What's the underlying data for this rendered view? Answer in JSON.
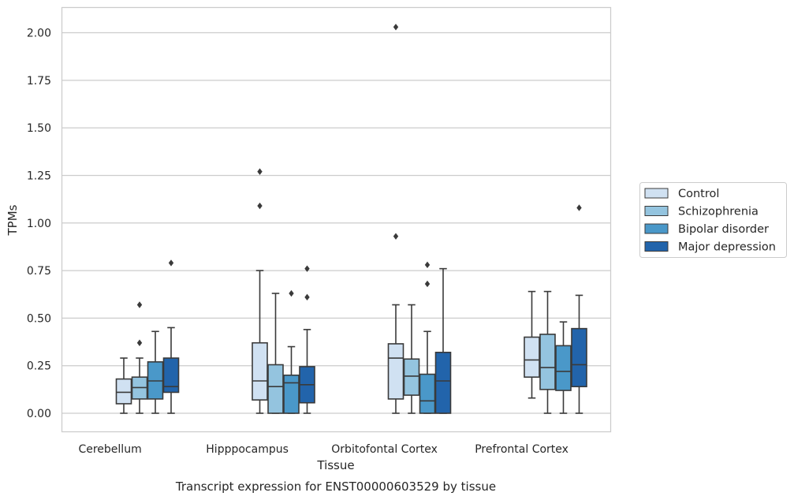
{
  "chart_data": {
    "type": "box",
    "caption": "Transcript expression for ENST00000603529 by tissue",
    "xlabel": "Tissue",
    "ylabel": "TPMs",
    "ylim": [
      -0.1,
      2.13
    ],
    "yticks": [
      "0.00",
      "0.25",
      "0.50",
      "0.75",
      "1.00",
      "1.25",
      "1.50",
      "1.75",
      "2.00"
    ],
    "ytick_values": [
      0,
      0.25,
      0.5,
      0.75,
      1.0,
      1.25,
      1.5,
      1.75,
      2.0
    ],
    "grid": "horizontal",
    "legend_placement": "right",
    "categories": [
      "Cerebellum",
      "Hipppocampus",
      "Orbitofontal Cortex",
      "Prefrontal Cortex"
    ],
    "series": [
      {
        "name": "Control",
        "color": "#d0e1f2",
        "boxes": [
          {
            "whislo": 0.0,
            "q1": 0.05,
            "med": 0.11,
            "q3": 0.18,
            "whishi": 0.29,
            "fliers": []
          },
          {
            "whislo": 0.0,
            "q1": 0.07,
            "med": 0.17,
            "q3": 0.37,
            "whishi": 0.75,
            "fliers": [
              1.09,
              1.27
            ]
          },
          {
            "whislo": 0.0,
            "q1": 0.075,
            "med": 0.29,
            "q3": 0.365,
            "whishi": 0.57,
            "fliers": [
              0.93,
              2.03
            ]
          },
          {
            "whislo": 0.08,
            "q1": 0.19,
            "med": 0.28,
            "q3": 0.4,
            "whishi": 0.64,
            "fliers": []
          }
        ]
      },
      {
        "name": "Schizophrenia",
        "color": "#94c4df",
        "boxes": [
          {
            "whislo": 0.0,
            "q1": 0.075,
            "med": 0.135,
            "q3": 0.19,
            "whishi": 0.29,
            "fliers": [
              0.37,
              0.57
            ]
          },
          {
            "whislo": 0.0,
            "q1": 0.0,
            "med": 0.14,
            "q3": 0.255,
            "whishi": 0.63,
            "fliers": []
          },
          {
            "whislo": 0.0,
            "q1": 0.095,
            "med": 0.195,
            "q3": 0.285,
            "whishi": 0.57,
            "fliers": []
          },
          {
            "whislo": 0.0,
            "q1": 0.125,
            "med": 0.24,
            "q3": 0.415,
            "whishi": 0.64,
            "fliers": []
          }
        ]
      },
      {
        "name": "Bipolar disorder",
        "color": "#4a98c9",
        "boxes": [
          {
            "whislo": 0.0,
            "q1": 0.075,
            "med": 0.17,
            "q3": 0.27,
            "whishi": 0.43,
            "fliers": []
          },
          {
            "whislo": 0.0,
            "q1": 0.0,
            "med": 0.16,
            "q3": 0.2,
            "whishi": 0.35,
            "fliers": [
              0.63
            ]
          },
          {
            "whislo": 0.0,
            "q1": 0.0,
            "med": 0.065,
            "q3": 0.205,
            "whishi": 0.43,
            "fliers": [
              0.68,
              0.78
            ]
          },
          {
            "whislo": 0.0,
            "q1": 0.12,
            "med": 0.22,
            "q3": 0.355,
            "whishi": 0.48,
            "fliers": []
          }
        ]
      },
      {
        "name": "Major depression",
        "color": "#2264ab",
        "boxes": [
          {
            "whislo": 0.0,
            "q1": 0.11,
            "med": 0.14,
            "q3": 0.29,
            "whishi": 0.45,
            "fliers": [
              0.79
            ]
          },
          {
            "whislo": 0.0,
            "q1": 0.055,
            "med": 0.15,
            "q3": 0.245,
            "whishi": 0.44,
            "fliers": [
              0.61,
              0.76
            ]
          },
          {
            "whislo": 0.0,
            "q1": 0.0,
            "med": 0.17,
            "q3": 0.32,
            "whishi": 0.76,
            "fliers": []
          },
          {
            "whislo": 0.0,
            "q1": 0.14,
            "med": 0.255,
            "q3": 0.445,
            "whishi": 0.62,
            "fliers": [
              1.08
            ]
          }
        ]
      }
    ]
  }
}
